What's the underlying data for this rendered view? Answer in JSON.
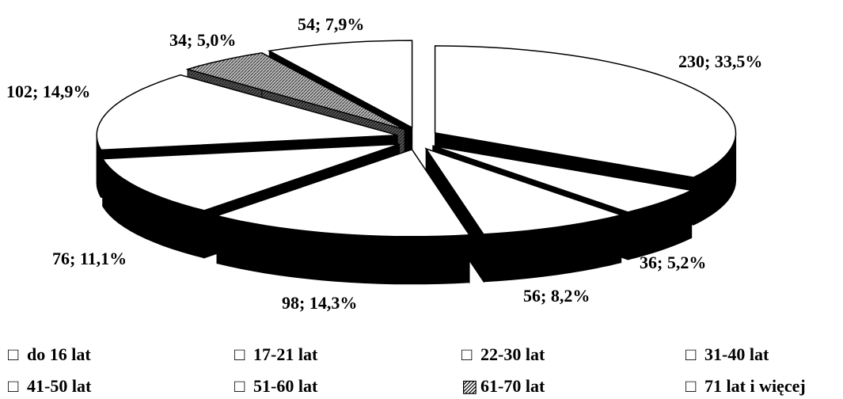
{
  "chart_data": {
    "type": "pie",
    "title": "",
    "categories": [
      "do 16 lat",
      "17-21 lat",
      "22-30 lat",
      "31-40 lat",
      "41-50 lat",
      "51-60 lat",
      "61-70 lat",
      "71 lat i więcej"
    ],
    "values": [
      230,
      36,
      56,
      98,
      76,
      102,
      34,
      54
    ],
    "percent_labels": [
      "33,5%",
      "5,2%",
      "8,2%",
      "14,3%",
      "11,1%",
      "14,9%",
      "5,0%",
      "7,9%"
    ],
    "data_labels": [
      "230; 33,5%",
      "36; 5,2%",
      "56; 8,2%",
      "98; 14,3%",
      "76; 11,1%",
      "102; 14,9%",
      "34; 5,0%",
      "54; 7,9%"
    ],
    "exploded": true,
    "three_d": true,
    "legend_placement": "bottom",
    "colors": {
      "face": "#ffffff",
      "side": "#000000",
      "hatched": "#7a7a7a",
      "outline": "#000000"
    }
  },
  "legend": {
    "items": [
      {
        "symbol": "□",
        "label": "do 16 lat"
      },
      {
        "symbol": "□",
        "label": "17-21 lat"
      },
      {
        "symbol": "□",
        "label": "22-30 lat"
      },
      {
        "symbol": "□",
        "label": "31-40 lat"
      },
      {
        "symbol": "□",
        "label": "41-50 lat"
      },
      {
        "symbol": "□",
        "label": "51-60 lat"
      },
      {
        "symbol": "▨",
        "label": "61-70 lat"
      },
      {
        "symbol": "□",
        "label": "71 lat i więcej"
      }
    ]
  }
}
